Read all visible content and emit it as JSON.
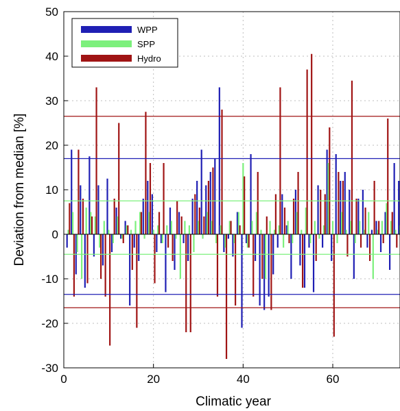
{
  "chart_data": {
    "type": "bar",
    "xlabel": "Climatic year",
    "ylabel": "Deviation from median [%]",
    "xlim": [
      0,
      75
    ],
    "ylim": [
      -30,
      50
    ],
    "xticks": [
      0,
      20,
      40,
      60
    ],
    "yticks": [
      -30,
      -20,
      -10,
      0,
      10,
      20,
      30,
      40,
      50
    ],
    "grid": true,
    "legend_position": "top-left",
    "colors": {
      "WPP": "#1f1fb4",
      "SPP": "#7cf07c",
      "Hydro": "#a01414"
    },
    "series": [
      {
        "name": "WPP",
        "values": [
          -3,
          19,
          -9,
          11,
          -12,
          17.5,
          -5,
          11,
          -7,
          12.5,
          -4,
          6,
          -1,
          3,
          -16,
          -3,
          -6,
          8,
          12,
          9,
          -4,
          -2,
          -13,
          6,
          -8,
          5,
          -2,
          -6,
          8,
          12,
          19,
          11,
          14,
          17,
          33,
          -4,
          -1,
          -5,
          5,
          -21,
          -2,
          18,
          -6,
          -16,
          -17,
          -14,
          -9,
          -3,
          9,
          2,
          -10,
          10,
          -7,
          -12,
          -3,
          -13,
          11,
          -3,
          19,
          -6,
          18,
          12,
          14,
          10,
          -10,
          8,
          10,
          -3,
          1,
          3,
          -4,
          5,
          -8,
          16,
          12
        ],
        "threshold_high": 17,
        "threshold_low": -13.5
      },
      {
        "name": "SPP",
        "values": [
          1,
          5,
          -4,
          -10,
          6,
          5,
          4,
          -3,
          3,
          1,
          -2,
          4,
          -1,
          2,
          1,
          3,
          5,
          -1,
          5,
          1,
          2,
          -2,
          2,
          3,
          -1,
          -10,
          3,
          2,
          -4,
          3,
          -1,
          5,
          3,
          -2,
          2,
          -3,
          3,
          -2,
          5,
          16,
          -3,
          3,
          5,
          1,
          -10,
          3,
          1,
          2,
          -3,
          3,
          -2,
          5,
          1,
          6,
          -2,
          3,
          -1,
          2,
          16,
          3,
          -2,
          5,
          1,
          3,
          -2,
          3,
          1,
          5,
          -10,
          1,
          3,
          7,
          3,
          1,
          2
        ],
        "threshold_high": 7.5,
        "threshold_low": -4.5
      },
      {
        "name": "Hydro",
        "values": [
          7,
          -14,
          19,
          8,
          -11,
          4,
          33,
          -10,
          -14,
          -25,
          8,
          25,
          -2,
          2,
          -8,
          -21,
          5,
          27.5,
          16,
          -11,
          5,
          16,
          -3,
          -6,
          7.5,
          4,
          -22,
          -22,
          9,
          6,
          4,
          12,
          15,
          -14,
          28,
          -28,
          3,
          -16,
          2,
          13,
          -3,
          -14,
          14,
          -10,
          4,
          -17,
          9,
          33,
          6,
          -2,
          8,
          14,
          -12,
          37,
          40.5,
          -6,
          10,
          9,
          24,
          -23,
          14,
          12,
          -5,
          34.5,
          8,
          -3,
          6,
          -6,
          12,
          3,
          -2,
          26,
          5,
          -3,
          4
        ],
        "threshold_high": 26.5,
        "threshold_low": -16.5
      }
    ]
  }
}
